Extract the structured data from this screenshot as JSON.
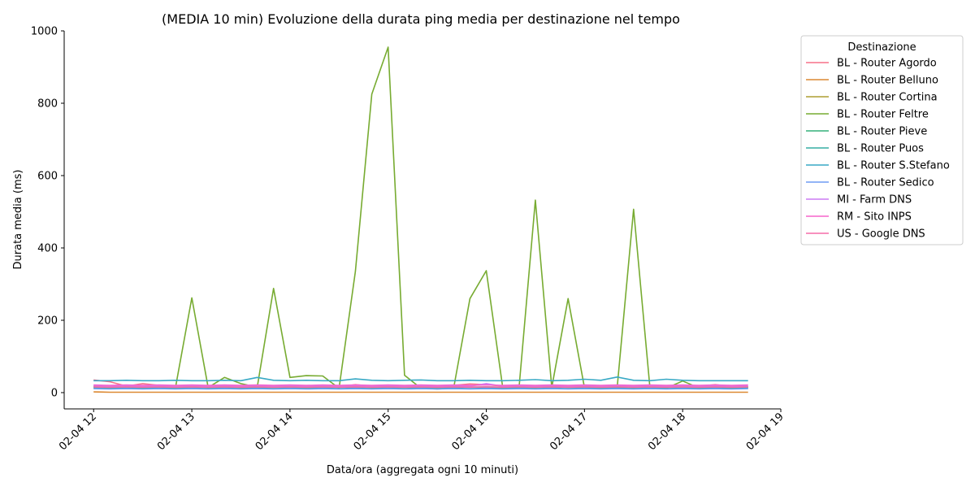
{
  "chart_data": {
    "type": "line",
    "title": "(MEDIA 10 min) Evoluzione della durata ping media per destinazione nel tempo",
    "xlabel": "Data/ora (aggregata ogni 10 minuti)",
    "ylabel": "Durata media (ms)",
    "xlim": [
      11.7,
      19.0
    ],
    "ylim": [
      -45,
      1000
    ],
    "x_ticks": [
      12,
      13,
      14,
      15,
      16,
      17,
      18,
      19
    ],
    "x_tick_labels": [
      "02-04 12",
      "02-04 13",
      "02-04 14",
      "02-04 15",
      "02-04 16",
      "02-04 17",
      "02-04 18",
      "02-04 19"
    ],
    "y_ticks": [
      0,
      200,
      400,
      600,
      800,
      1000
    ],
    "y_tick_labels": [
      "0",
      "200",
      "400",
      "600",
      "800",
      "1000"
    ],
    "grid": false,
    "legend_title": "Destinazione",
    "legend_position": "outside-right",
    "x": [
      12.0,
      12.1667,
      12.3333,
      12.5,
      12.6667,
      12.8333,
      13.0,
      13.1667,
      13.3333,
      13.5,
      13.6667,
      13.8333,
      14.0,
      14.1667,
      14.3333,
      14.5,
      14.6667,
      14.8333,
      15.0,
      15.1667,
      15.3333,
      15.5,
      15.6667,
      15.8333,
      16.0,
      16.1667,
      16.3333,
      16.5,
      16.6667,
      16.8333,
      17.0,
      17.1667,
      17.3333,
      17.5,
      17.6667,
      17.8333,
      18.0,
      18.1667,
      18.3333,
      18.5,
      18.6667
    ],
    "series": [
      {
        "name": "BL - Router Agordo",
        "color": "#f77189",
        "values": [
          35,
          30,
          18,
          25,
          20,
          15,
          18,
          15,
          17,
          16,
          15,
          18,
          16,
          17,
          15,
          16,
          22,
          18,
          15,
          18,
          14,
          16,
          20,
          24,
          22,
          18,
          16,
          18,
          17,
          15,
          18,
          16,
          17,
          18,
          16,
          17,
          15,
          18,
          22,
          17,
          16
        ]
      },
      {
        "name": "BL - Router Belluno",
        "color": "#dc8932",
        "values": [
          2,
          1,
          1,
          1,
          1,
          1,
          1,
          1,
          1,
          1,
          1,
          1,
          1,
          1,
          1,
          1,
          1,
          1,
          1,
          1,
          1,
          1,
          1,
          1,
          1,
          1,
          1,
          1,
          1,
          1,
          1,
          1,
          1,
          1,
          1,
          1,
          1,
          1,
          1,
          1,
          1
        ]
      },
      {
        "name": "BL - Router Cortina",
        "color": "#ae9d31",
        "values": [
          18,
          15,
          14,
          15,
          14,
          12,
          16,
          14,
          15,
          14,
          13,
          15,
          14,
          13,
          14,
          15,
          16,
          14,
          13,
          15,
          12,
          14,
          15,
          16,
          14,
          13,
          15,
          14,
          16,
          15,
          14,
          13,
          15,
          14,
          16,
          15,
          14,
          13,
          15,
          14,
          15
        ]
      },
      {
        "name": "BL - Router Feltre",
        "color": "#77ab31",
        "values": [
          14,
          13,
          14,
          13,
          14,
          13,
          262,
          14,
          42,
          25,
          15,
          288,
          42,
          47,
          46,
          12,
          335,
          825,
          955,
          48,
          12,
          10,
          12,
          260,
          337,
          15,
          13,
          532,
          14,
          260,
          13,
          12,
          14,
          507,
          14,
          12,
          32,
          13,
          12,
          14,
          13
        ]
      },
      {
        "name": "BL - Router Pieve",
        "color": "#33b07a",
        "values": [
          16,
          15,
          16,
          15,
          16,
          15,
          16,
          15,
          16,
          15,
          16,
          15,
          16,
          15,
          16,
          15,
          16,
          15,
          16,
          15,
          16,
          15,
          16,
          15,
          16,
          15,
          16,
          15,
          16,
          15,
          16,
          15,
          16,
          15,
          16,
          15,
          16,
          15,
          16,
          15,
          16
        ]
      },
      {
        "name": "BL - Router Puos",
        "color": "#36ada4",
        "values": [
          12,
          11,
          12,
          11,
          12,
          11,
          12,
          11,
          12,
          11,
          12,
          11,
          12,
          11,
          12,
          11,
          12,
          11,
          12,
          11,
          12,
          11,
          12,
          11,
          12,
          11,
          12,
          11,
          12,
          11,
          12,
          11,
          12,
          11,
          12,
          11,
          12,
          11,
          12,
          11,
          12
        ]
      },
      {
        "name": "BL - Router S.Stefano",
        "color": "#38a9c5",
        "values": [
          33,
          33,
          34,
          33,
          33,
          34,
          33,
          33,
          34,
          33,
          42,
          34,
          33,
          34,
          33,
          33,
          38,
          34,
          33,
          34,
          35,
          33,
          33,
          34,
          33,
          33,
          34,
          36,
          33,
          34,
          37,
          34,
          43,
          34,
          33,
          37,
          34,
          33,
          33,
          33,
          33
        ]
      },
      {
        "name": "BL - Router Sedico",
        "color": "#6e9bf4",
        "values": [
          11,
          10,
          11,
          10,
          11,
          10,
          11,
          10,
          11,
          10,
          11,
          10,
          11,
          10,
          11,
          10,
          11,
          10,
          11,
          10,
          11,
          10,
          11,
          10,
          11,
          10,
          11,
          10,
          11,
          10,
          11,
          10,
          11,
          10,
          11,
          10,
          11,
          10,
          11,
          10,
          11
        ]
      },
      {
        "name": "MI - Farm DNS",
        "color": "#cc7af4",
        "values": [
          19,
          18,
          19,
          18,
          19,
          18,
          19,
          18,
          19,
          18,
          19,
          18,
          19,
          18,
          19,
          18,
          19,
          18,
          19,
          18,
          19,
          18,
          19,
          18,
          25,
          18,
          19,
          18,
          19,
          18,
          19,
          18,
          19,
          18,
          19,
          18,
          19,
          18,
          19,
          18,
          19
        ]
      },
      {
        "name": "RM - Sito INPS",
        "color": "#f565cc",
        "values": [
          21,
          20,
          21,
          20,
          21,
          20,
          21,
          20,
          21,
          20,
          21,
          20,
          21,
          20,
          21,
          20,
          21,
          20,
          21,
          20,
          21,
          20,
          21,
          20,
          21,
          20,
          21,
          20,
          21,
          20,
          21,
          20,
          21,
          20,
          21,
          20,
          21,
          20,
          21,
          20,
          21
        ]
      },
      {
        "name": "US - Google DNS",
        "color": "#f66ca8",
        "values": [
          16,
          15,
          16,
          15,
          16,
          15,
          16,
          15,
          16,
          15,
          16,
          15,
          16,
          15,
          16,
          15,
          16,
          15,
          16,
          15,
          16,
          15,
          16,
          15,
          16,
          15,
          16,
          15,
          16,
          15,
          16,
          15,
          16,
          15,
          16,
          15,
          16,
          15,
          16,
          15,
          16
        ]
      }
    ]
  }
}
